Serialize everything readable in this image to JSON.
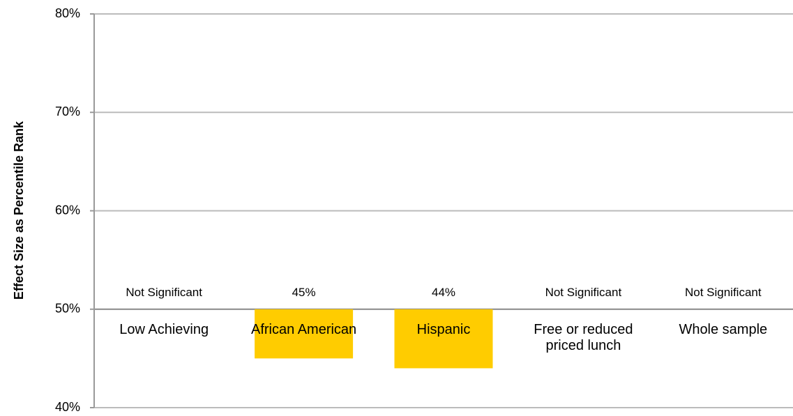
{
  "chart_data": {
    "type": "bar",
    "ylabel": "Effect Size as Percentile Rank",
    "categories": [
      "Low Achieving",
      "African American",
      "Hispanic",
      "Free or reduced priced lunch",
      "Whole sample"
    ],
    "values": [
      null,
      45,
      44,
      null,
      null
    ],
    "value_labels": [
      "Not Significant",
      "45%",
      "44%",
      "Not Significant",
      "Not Significant"
    ],
    "color": "#ffcc00",
    "baseline": 50,
    "ylim": [
      40,
      80
    ],
    "yticks": [
      {
        "value": 40,
        "label": "40%"
      },
      {
        "value": 50,
        "label": "50%"
      },
      {
        "value": 60,
        "label": "60%"
      },
      {
        "value": 70,
        "label": "70%"
      },
      {
        "value": 80,
        "label": "80%"
      }
    ],
    "grid": true
  }
}
